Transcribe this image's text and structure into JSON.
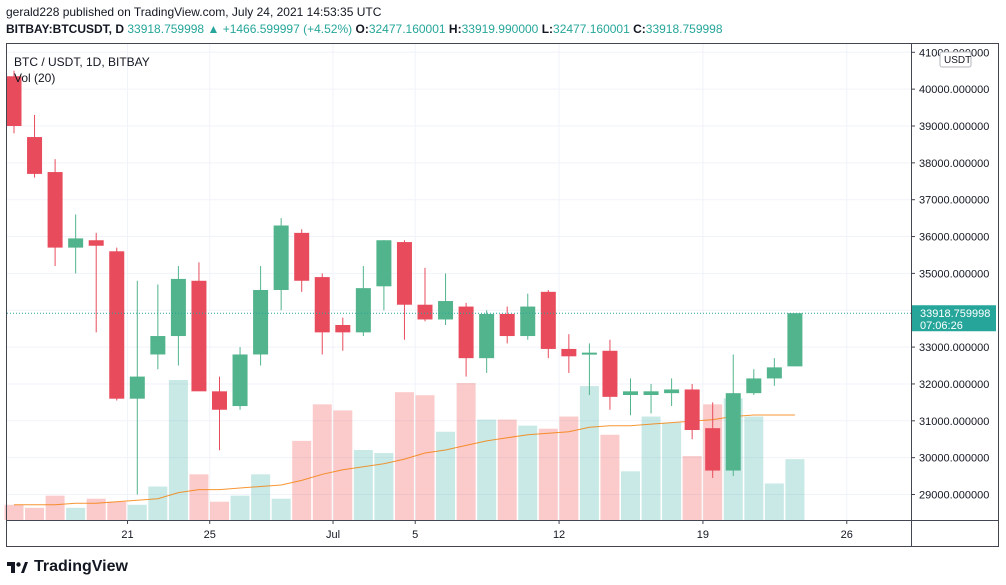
{
  "header": {
    "line1": "gerald228 published on TradingView.com, July 24, 2021 14:53:35 UTC",
    "symbol": "BITBAY:BTCUSDT, D",
    "last": "33918.759998",
    "change": "+1466.599997 (+4.52%)",
    "o_label": "O:",
    "o": "32477.160001",
    "h_label": "H:",
    "h": "33919.990000",
    "l_label": "L:",
    "l": "32477.160001",
    "c_label": "C:",
    "c": "33918.759998"
  },
  "legend": {
    "title": "BTC / USDT, 1D, BITBAY",
    "vol": "Vol (20)"
  },
  "price_axis": {
    "currency_badge": "USDT",
    "current_price": "33918.759998",
    "countdown": "07:06:26"
  },
  "footer": {
    "brand": "TradingView"
  },
  "colors": {
    "up": "#26a69a",
    "down": "#ef5350",
    "up_bar": "#52b48c",
    "down_bar": "#e84b5c",
    "ma": "#f57c00"
  },
  "chart_data": {
    "type": "candlestick",
    "y_range": [
      28400,
      41000
    ],
    "y_ticks": [
      29000,
      30000,
      31000,
      32000,
      33000,
      34000,
      35000,
      36000,
      37000,
      38000,
      39000,
      40000,
      41000
    ],
    "y_tick_labels": [
      "29000.000000",
      "30000.000000",
      "31000.000000",
      "32000.000000",
      "33000.000000",
      "34000.000000",
      "35000.000000",
      "36000.000000",
      "37000.000000",
      "38000.000000",
      "39000.000000",
      "40000.000000",
      "41000.000000"
    ],
    "x_labels": [
      {
        "label": "21",
        "after_candle": 5
      },
      {
        "label": "25",
        "after_candle": 9
      },
      {
        "label": "Jul",
        "after_candle": 15
      },
      {
        "label": "5",
        "after_candle": 19
      },
      {
        "label": "12",
        "after_candle": 26
      },
      {
        "label": "19",
        "after_candle": 33
      },
      {
        "label": "26",
        "after_candle": 40
      }
    ],
    "candles": [
      {
        "o": 40350,
        "h": 40500,
        "l": 38800,
        "c": 39000
      },
      {
        "o": 38700,
        "h": 39300,
        "l": 37600,
        "c": 37700
      },
      {
        "o": 37750,
        "h": 38100,
        "l": 35200,
        "c": 35700
      },
      {
        "o": 35700,
        "h": 36600,
        "l": 35000,
        "c": 35950
      },
      {
        "o": 35900,
        "h": 36100,
        "l": 33400,
        "c": 35750
      },
      {
        "o": 35600,
        "h": 35700,
        "l": 31550,
        "c": 31600
      },
      {
        "o": 31600,
        "h": 34800,
        "l": 29000,
        "c": 32200
      },
      {
        "o": 32800,
        "h": 34700,
        "l": 32400,
        "c": 33300
      },
      {
        "o": 33300,
        "h": 35200,
        "l": 32500,
        "c": 34850
      },
      {
        "o": 34800,
        "h": 35300,
        "l": 31900,
        "c": 31800
      },
      {
        "o": 31800,
        "h": 32200,
        "l": 30200,
        "c": 31300
      },
      {
        "o": 31400,
        "h": 33000,
        "l": 31300,
        "c": 32800
      },
      {
        "o": 32800,
        "h": 35200,
        "l": 32500,
        "c": 34550
      },
      {
        "o": 34550,
        "h": 36500,
        "l": 34000,
        "c": 36300
      },
      {
        "o": 36100,
        "h": 36200,
        "l": 34500,
        "c": 34800
      },
      {
        "o": 34900,
        "h": 35000,
        "l": 32800,
        "c": 33400
      },
      {
        "o": 33600,
        "h": 33800,
        "l": 32900,
        "c": 33400
      },
      {
        "o": 33400,
        "h": 35200,
        "l": 33300,
        "c": 34600
      },
      {
        "o": 34650,
        "h": 35900,
        "l": 34000,
        "c": 35900
      },
      {
        "o": 35850,
        "h": 35900,
        "l": 33200,
        "c": 34150
      },
      {
        "o": 34150,
        "h": 35150,
        "l": 33700,
        "c": 33750
      },
      {
        "o": 33750,
        "h": 35000,
        "l": 33600,
        "c": 34250
      },
      {
        "o": 34100,
        "h": 34200,
        "l": 32200,
        "c": 32700
      },
      {
        "o": 32700,
        "h": 34000,
        "l": 32300,
        "c": 33900
      },
      {
        "o": 33900,
        "h": 34100,
        "l": 33100,
        "c": 33300
      },
      {
        "o": 33300,
        "h": 34450,
        "l": 33200,
        "c": 34100
      },
      {
        "o": 34500,
        "h": 34550,
        "l": 32700,
        "c": 32950
      },
      {
        "o": 32950,
        "h": 33350,
        "l": 32300,
        "c": 32750
      },
      {
        "o": 32800,
        "h": 33100,
        "l": 31700,
        "c": 32850
      },
      {
        "o": 32900,
        "h": 33200,
        "l": 31300,
        "c": 31650
      },
      {
        "o": 31700,
        "h": 32150,
        "l": 31150,
        "c": 31800
      },
      {
        "o": 31700,
        "h": 32000,
        "l": 31200,
        "c": 31800
      },
      {
        "o": 31750,
        "h": 32150,
        "l": 31400,
        "c": 31850
      },
      {
        "o": 31850,
        "h": 32000,
        "l": 30500,
        "c": 30750
      },
      {
        "o": 30800,
        "h": 31500,
        "l": 29450,
        "c": 29650
      },
      {
        "o": 29650,
        "h": 32800,
        "l": 29500,
        "c": 31750
      },
      {
        "o": 31750,
        "h": 32400,
        "l": 31700,
        "c": 32150
      },
      {
        "o": 32150,
        "h": 32700,
        "l": 31950,
        "c": 32450
      },
      {
        "o": 32477.160001,
        "h": 33919.99,
        "l": 32477.160001,
        "c": 33918.759998
      }
    ],
    "volume": [
      0.05,
      0.04,
      0.08,
      0.04,
      0.07,
      0.06,
      0.05,
      0.11,
      0.46,
      0.15,
      0.06,
      0.08,
      0.15,
      0.07,
      0.26,
      0.38,
      0.36,
      0.23,
      0.22,
      0.42,
      0.41,
      0.29,
      0.45,
      0.33,
      0.33,
      0.31,
      0.3,
      0.34,
      0.44,
      0.28,
      0.16,
      0.34,
      0.32,
      0.21,
      0.38,
      0.4,
      0.34,
      0.12,
      0.2
    ],
    "volume_ma": [
      0.05,
      0.05,
      0.05,
      0.055,
      0.055,
      0.06,
      0.065,
      0.07,
      0.09,
      0.1,
      0.1,
      0.105,
      0.11,
      0.115,
      0.13,
      0.15,
      0.165,
      0.175,
      0.185,
      0.2,
      0.22,
      0.23,
      0.245,
      0.26,
      0.27,
      0.28,
      0.285,
      0.29,
      0.305,
      0.31,
      0.31,
      0.315,
      0.32,
      0.325,
      0.33,
      0.34,
      0.345,
      0.345,
      0.345
    ]
  }
}
